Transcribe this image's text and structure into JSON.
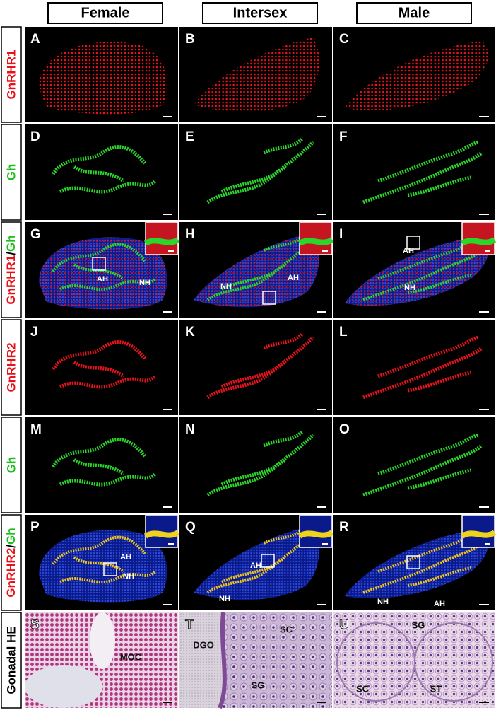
{
  "column_headers": [
    "Female",
    "Intersex",
    "Male"
  ],
  "row_labels": [
    "GnRHR1",
    "Gh",
    [
      "GnRHR1",
      "/",
      "Gh"
    ],
    "GnRHR2",
    "Gh",
    [
      "GnRHR2",
      "/",
      "Gh"
    ],
    "Gonadal HE"
  ],
  "panels": [
    {
      "letter": "A"
    },
    {
      "letter": "B"
    },
    {
      "letter": "C"
    },
    {
      "letter": "D"
    },
    {
      "letter": "E"
    },
    {
      "letter": "F"
    },
    {
      "letter": "G",
      "annotations": [
        "AH",
        "NH"
      ]
    },
    {
      "letter": "H",
      "annotations": [
        "NH",
        "AH"
      ]
    },
    {
      "letter": "I",
      "annotations": [
        "AH",
        "NH"
      ]
    },
    {
      "letter": "J"
    },
    {
      "letter": "K"
    },
    {
      "letter": "L"
    },
    {
      "letter": "M"
    },
    {
      "letter": "N"
    },
    {
      "letter": "O"
    },
    {
      "letter": "P",
      "annotations": [
        "AH",
        "NH"
      ]
    },
    {
      "letter": "Q",
      "annotations": [
        "AH",
        "NH"
      ]
    },
    {
      "letter": "R",
      "annotations": [
        "NH",
        "AH"
      ]
    },
    {
      "letter": "S",
      "annotations": [
        "MOC"
      ]
    },
    {
      "letter": "T",
      "annotations": [
        "DGO",
        "SC",
        "SG"
      ]
    },
    {
      "letter": "U",
      "annotations": [
        "SG",
        "SC",
        "ST"
      ]
    }
  ]
}
